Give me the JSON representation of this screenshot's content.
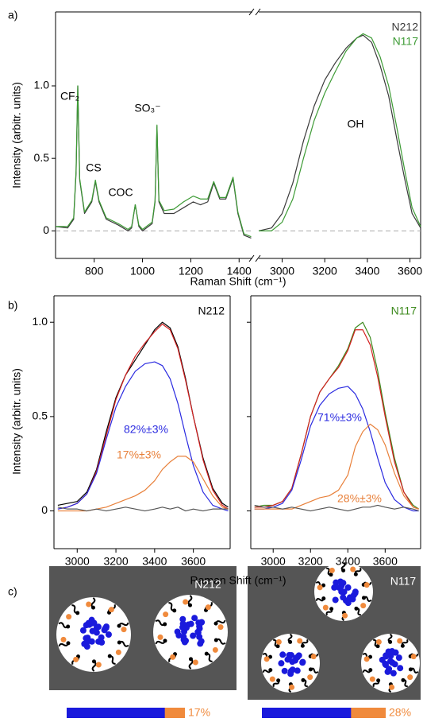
{
  "chart_data": [
    {
      "type": "line",
      "panel": "a)",
      "xlabel": "Raman Shift (cm⁻¹)",
      "ylabel": "Intensity (arbitr. units)",
      "x": [
        640,
        690,
        715,
        725,
        732,
        740,
        760,
        790,
        805,
        820,
        850,
        900,
        940,
        955,
        970,
        985,
        1000,
        1040,
        1052,
        1060,
        1068,
        1090,
        1130,
        1170,
        1210,
        1240,
        1270,
        1295,
        1320,
        1345,
        1375,
        1395,
        1420,
        1450,
        2890,
        2950,
        3000,
        3050,
        3100,
        3150,
        3200,
        3250,
        3300,
        3350,
        3380,
        3420,
        3460,
        3500,
        3540,
        3575,
        3610,
        3650
      ],
      "xlim": [
        [
          640,
          1455
        ],
        [
          2890,
          3650
        ]
      ],
      "xticks": [
        800,
        1000,
        1200,
        1400,
        3000,
        3200,
        3400,
        3600
      ],
      "ylim": [
        -0.19,
        1.51
      ],
      "yticks": [
        0,
        0.5,
        {
          "value": 1,
          "label": "1.0"
        }
      ],
      "zero_line": true,
      "series": [
        {
          "name": "N212",
          "color": "#3a3a3a",
          "values": [
            0.03,
            0.02,
            0.08,
            0.4,
            1.0,
            0.35,
            0.12,
            0.2,
            0.34,
            0.2,
            0.08,
            0.04,
            0.0,
            0.02,
            0.18,
            0.03,
            0.0,
            0.05,
            0.2,
            0.72,
            0.2,
            0.12,
            0.12,
            0.16,
            0.2,
            0.18,
            0.2,
            0.33,
            0.22,
            0.22,
            0.36,
            0.12,
            -0.03,
            -0.05,
            0.0,
            0.02,
            0.12,
            0.33,
            0.62,
            0.86,
            1.04,
            1.16,
            1.26,
            1.33,
            1.35,
            1.3,
            1.14,
            0.93,
            0.62,
            0.36,
            0.12,
            0.02
          ]
        },
        {
          "name": "N117",
          "color": "#3d9b35",
          "values": [
            0.03,
            0.03,
            0.09,
            0.42,
            1.0,
            0.36,
            0.13,
            0.21,
            0.35,
            0.21,
            0.09,
            0.05,
            0.01,
            0.03,
            0.18,
            0.04,
            0.01,
            0.06,
            0.21,
            0.73,
            0.21,
            0.14,
            0.15,
            0.2,
            0.24,
            0.22,
            0.22,
            0.34,
            0.23,
            0.23,
            0.37,
            0.13,
            -0.02,
            -0.04,
            0.0,
            0.0,
            0.06,
            0.22,
            0.5,
            0.76,
            0.95,
            1.1,
            1.24,
            1.33,
            1.36,
            1.33,
            1.2,
            1.0,
            0.7,
            0.42,
            0.16,
            0.03
          ]
        }
      ],
      "annotations": [
        "CF₂",
        "CS",
        "COC",
        "SO₃⁻",
        "OH"
      ]
    },
    {
      "type": "line",
      "panel": "b)",
      "xlabel": "Raman Shift (cm⁻¹)",
      "ylabel": "Intensity (arbitr. units)",
      "x": [
        2900,
        2950,
        3000,
        3050,
        3100,
        3150,
        3200,
        3250,
        3300,
        3350,
        3400,
        3440,
        3480,
        3520,
        3560,
        3600,
        3650,
        3700,
        3750,
        3780
      ],
      "xlim": [
        2880,
        3790
      ],
      "xticks": [
        3000,
        3200,
        3400,
        3600
      ],
      "ylim": [
        -0.2,
        1.14
      ],
      "yticks": [
        0,
        0.5,
        {
          "value": 1,
          "label": "1.0"
        }
      ],
      "series": [
        {
          "name": "N212",
          "color": "#000000",
          "values": [
            0.03,
            0.04,
            0.05,
            0.1,
            0.22,
            0.42,
            0.6,
            0.72,
            0.8,
            0.88,
            0.96,
            1.0,
            0.97,
            0.87,
            0.7,
            0.5,
            0.28,
            0.12,
            0.04,
            0.02
          ]
        },
        {
          "color": "#d42020",
          "values": [
            0.01,
            0.02,
            0.04,
            0.09,
            0.21,
            0.4,
            0.59,
            0.72,
            0.82,
            0.89,
            0.95,
            0.99,
            0.96,
            0.86,
            0.69,
            0.5,
            0.27,
            0.11,
            0.03,
            0.01
          ]
        },
        {
          "color": "#2a2ae0",
          "values": [
            0.01,
            0.02,
            0.04,
            0.09,
            0.2,
            0.38,
            0.55,
            0.66,
            0.74,
            0.78,
            0.79,
            0.77,
            0.7,
            0.57,
            0.4,
            0.24,
            0.1,
            0.03,
            0.01,
            0.0
          ]
        },
        {
          "color": "#e8803a",
          "values": [
            0,
            0,
            0,
            0,
            0.01,
            0.02,
            0.04,
            0.06,
            0.08,
            0.11,
            0.16,
            0.22,
            0.26,
            0.29,
            0.29,
            0.26,
            0.17,
            0.08,
            0.02,
            0.01
          ]
        },
        {
          "color": "#555555",
          "values": [
            0.02,
            0.01,
            0.01,
            0.0,
            0.01,
            0.0,
            0.01,
            0.02,
            0.01,
            0.0,
            0.01,
            0.02,
            0.01,
            0.02,
            0.0,
            0.01,
            0.0,
            0.01,
            0.01,
            0.01
          ]
        }
      ],
      "annotations": [
        "82%±3%",
        "17%±3%"
      ]
    },
    {
      "type": "line",
      "x": [
        2900,
        2950,
        3000,
        3050,
        3100,
        3150,
        3200,
        3250,
        3300,
        3350,
        3400,
        3440,
        3480,
        3520,
        3560,
        3600,
        3650,
        3700,
        3750,
        3780
      ],
      "xlim": [
        2880,
        3790
      ],
      "xticks": [
        3000,
        3200,
        3400,
        3600
      ],
      "ylim": [
        -0.2,
        1.14
      ],
      "yticks": [
        0,
        0.5,
        1
      ],
      "ytick_labels": false,
      "series": [
        {
          "name": "N117",
          "color": "#3d8a1e",
          "values": [
            0.02,
            0.03,
            0.03,
            0.05,
            0.12,
            0.3,
            0.5,
            0.63,
            0.7,
            0.77,
            0.86,
            0.97,
            1.0,
            0.92,
            0.74,
            0.52,
            0.28,
            0.1,
            0.03,
            0.01
          ]
        },
        {
          "color": "#d42020",
          "values": [
            0.02,
            0.02,
            0.03,
            0.05,
            0.12,
            0.3,
            0.5,
            0.63,
            0.7,
            0.76,
            0.85,
            0.96,
            0.96,
            0.88,
            0.71,
            0.5,
            0.26,
            0.1,
            0.02,
            0.01
          ]
        },
        {
          "color": "#2a2ae0",
          "values": [
            0.01,
            0.01,
            0.02,
            0.04,
            0.11,
            0.27,
            0.45,
            0.56,
            0.62,
            0.65,
            0.66,
            0.62,
            0.54,
            0.42,
            0.28,
            0.15,
            0.06,
            0.02,
            0.0,
            0.0
          ]
        },
        {
          "color": "#e8803a",
          "values": [
            0.01,
            0.01,
            0.01,
            0.01,
            0.01,
            0.03,
            0.05,
            0.07,
            0.08,
            0.11,
            0.19,
            0.34,
            0.42,
            0.46,
            0.43,
            0.35,
            0.2,
            0.08,
            0.02,
            0.01
          ]
        },
        {
          "color": "#555555",
          "values": [
            0.03,
            0.02,
            0.02,
            0.01,
            0.02,
            0.01,
            0.0,
            0.01,
            0.02,
            0.01,
            0.0,
            0.01,
            0.02,
            0.02,
            0.03,
            0.02,
            0.01,
            0.02,
            0.01,
            0.0
          ]
        }
      ],
      "annotations": [
        "71%±3%",
        "28%±3%"
      ]
    },
    {
      "type": "stacked-bar",
      "panel": "c)",
      "categories": [
        "N212",
        "N117"
      ],
      "values": [
        17,
        28
      ],
      "value_labels": [
        "17%",
        "28%"
      ],
      "xlim": [
        0,
        100
      ],
      "colors": [
        "#1a1adc",
        "#f08a3c"
      ]
    }
  ]
}
